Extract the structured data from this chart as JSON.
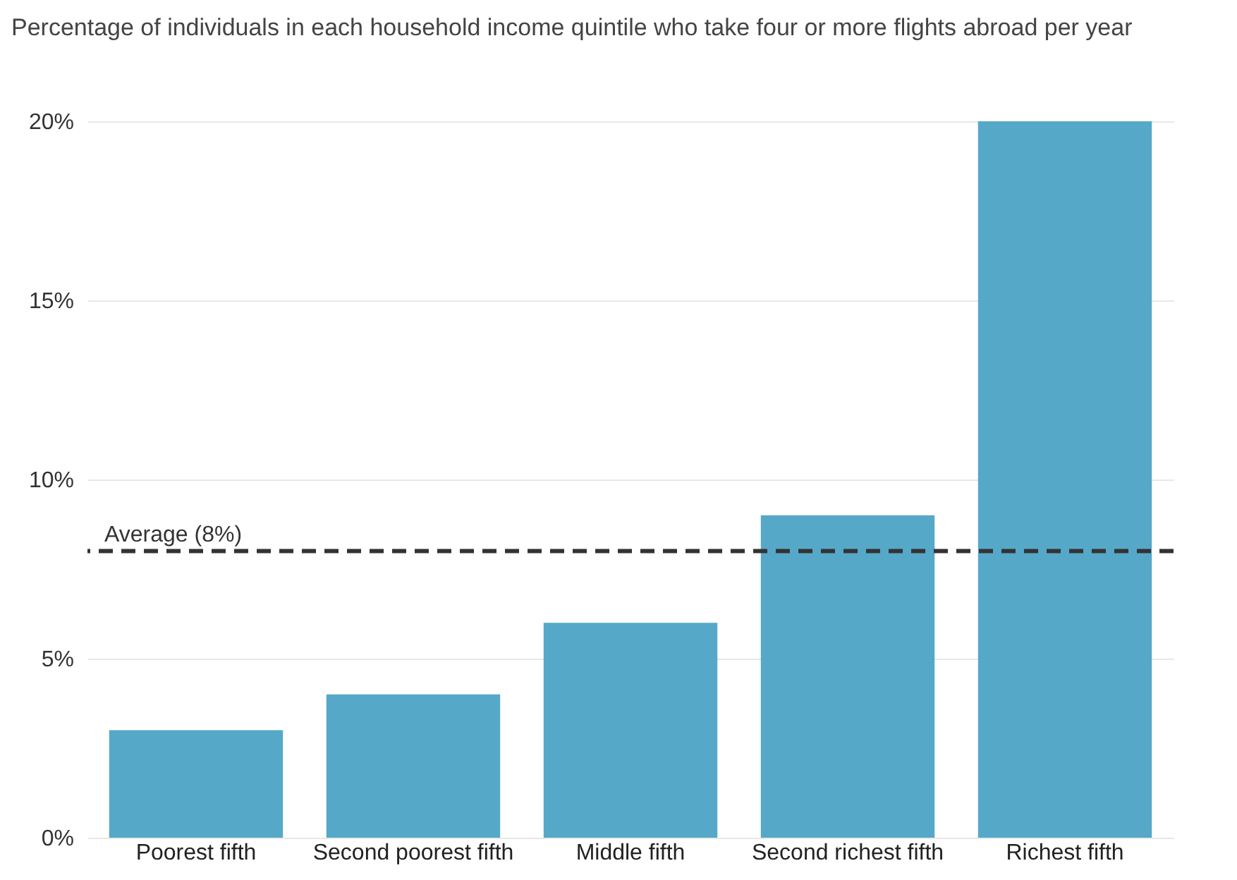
{
  "chart_data": {
    "type": "bar",
    "title": "Percentage of individuals in each household income quintile who take four or more flights abroad per year",
    "categories": [
      "Poorest fifth",
      "Second poorest fifth",
      "Middle fifth",
      "Second richest fifth",
      "Richest fifth"
    ],
    "values": [
      3,
      4,
      6,
      9,
      20
    ],
    "color": "#56a8c8",
    "ylim": [
      0,
      20
    ],
    "yticks": [
      {
        "value": 0,
        "label": "0%"
      },
      {
        "value": 5,
        "label": "5%"
      },
      {
        "value": 10,
        "label": "10%"
      },
      {
        "value": 15,
        "label": "15%"
      },
      {
        "value": 20,
        "label": "20%"
      }
    ],
    "grid": "y",
    "ref_lines": [
      {
        "axis": "y",
        "value": 8,
        "label": "Average (8%)",
        "color": "#333333",
        "line_style": "dashed"
      }
    ]
  }
}
